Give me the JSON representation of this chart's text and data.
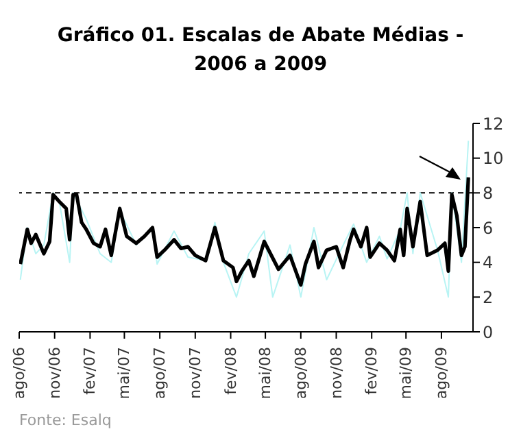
{
  "chart_data": {
    "type": "line",
    "title": "Gráfico 01. Escalas de Abate Médias - 2006 a 2009",
    "annotations": [
      "Fonte: Esalq"
    ],
    "series": [
      {
        "color": "#b8f4f4",
        "x": [
          "2006-08-04",
          "2006-08-22",
          "2006-09-13",
          "2006-10-04",
          "2006-10-28",
          "2006-11-13",
          "2006-12-10",
          "2006-12-19",
          "2007-01-22",
          "2007-02-27",
          "2007-03-28",
          "2007-04-19",
          "2007-06-01",
          "2007-07-13",
          "2007-07-25",
          "2007-09-07",
          "2007-10-13",
          "2007-11-28",
          "2007-12-22",
          "2008-01-13",
          "2008-02-16",
          "2008-03-19",
          "2008-04-28",
          "2008-05-20",
          "2008-07-04",
          "2008-08-01",
          "2008-09-04",
          "2008-10-07",
          "2008-11-19",
          "2008-12-16",
          "2009-01-19",
          "2009-02-21",
          "2009-03-13",
          "2009-04-16",
          "2009-05-04",
          "2009-05-19",
          "2009-06-07",
          "2009-07-22",
          "2009-08-19",
          "2009-08-28",
          "2009-09-22",
          "2009-10-10"
        ],
        "values": [
          3,
          6,
          4.5,
          5,
          8,
          7.5,
          4,
          8,
          6.5,
          4.5,
          4,
          7,
          5,
          6,
          3.9,
          5.8,
          4.3,
          4.1,
          6.3,
          4,
          2,
          4.5,
          5.8,
          2,
          5,
          2,
          6,
          3,
          5,
          6.2,
          4,
          5.5,
          4.2,
          5.9,
          8,
          4.5,
          8,
          4.7,
          2,
          8,
          4,
          11
        ]
      },
      {
        "color": "#000000",
        "x": [
          "2006-08-04",
          "2006-08-22",
          "2006-09-01",
          "2006-09-13",
          "2006-10-04",
          "2006-10-19",
          "2006-10-28",
          "2006-11-13",
          "2006-12-01",
          "2006-12-10",
          "2006-12-19",
          "2006-12-28",
          "2007-01-10",
          "2007-01-22",
          "2007-02-10",
          "2007-02-27",
          "2007-03-13",
          "2007-03-28",
          "2007-04-19",
          "2007-05-07",
          "2007-06-01",
          "2007-06-22",
          "2007-07-13",
          "2007-07-25",
          "2007-08-13",
          "2007-09-07",
          "2007-09-25",
          "2007-10-13",
          "2007-11-01",
          "2007-11-28",
          "2007-12-22",
          "2008-01-13",
          "2008-02-07",
          "2008-02-16",
          "2008-03-01",
          "2008-03-19",
          "2008-04-01",
          "2008-04-28",
          "2008-06-04",
          "2008-07-04",
          "2008-08-01",
          "2008-08-13",
          "2008-09-04",
          "2008-09-16",
          "2008-10-07",
          "2008-11-01",
          "2008-11-19",
          "2008-12-07",
          "2008-12-16",
          "2009-01-04",
          "2009-01-19",
          "2009-01-28",
          "2009-02-21",
          "2009-03-13",
          "2009-04-01",
          "2009-04-16",
          "2009-04-25",
          "2009-05-04",
          "2009-05-19",
          "2009-06-07",
          "2009-06-25",
          "2009-07-22",
          "2009-08-10",
          "2009-08-19",
          "2009-08-28",
          "2009-09-10",
          "2009-09-22",
          "2009-10-01",
          "2009-10-10"
        ],
        "values": [
          3.9,
          5.9,
          5.1,
          5.6,
          4.5,
          5.2,
          7.9,
          7.5,
          7.1,
          5.3,
          7.9,
          7.9,
          6.3,
          5.9,
          5.1,
          4.9,
          5.9,
          4.4,
          7.1,
          5.5,
          5.1,
          5.5,
          6.0,
          4.3,
          4.7,
          5.3,
          4.8,
          4.9,
          4.4,
          4.1,
          6.0,
          4.1,
          3.7,
          2.9,
          3.5,
          4.1,
          3.2,
          5.2,
          3.6,
          4.4,
          2.7,
          3.9,
          5.2,
          3.7,
          4.7,
          4.9,
          3.7,
          5.3,
          5.9,
          4.9,
          6.0,
          4.3,
          5.1,
          4.7,
          4.1,
          5.9,
          4.4,
          7.1,
          4.9,
          7.5,
          4.4,
          4.7,
          5.1,
          3.5,
          7.9,
          6.7,
          4.4,
          4.9,
          8.9
        ]
      }
    ],
    "xlim": [
      "2006-08-01",
      "2009-10-22"
    ],
    "xticks": [
      {
        "value": "2006-08",
        "label": "ago/06"
      },
      {
        "value": "2006-11",
        "label": "nov/06"
      },
      {
        "value": "2007-02",
        "label": "fev/07"
      },
      {
        "value": "2007-05",
        "label": "mai/07"
      },
      {
        "value": "2007-08",
        "label": "ago/07"
      },
      {
        "value": "2007-11",
        "label": "nov/07"
      },
      {
        "value": "2008-02",
        "label": "fev/08"
      },
      {
        "value": "2008-05",
        "label": "mai/08"
      },
      {
        "value": "2008-08",
        "label": "ago/08"
      },
      {
        "value": "2008-11",
        "label": "nov/08"
      },
      {
        "value": "2009-02",
        "label": "fev/09"
      },
      {
        "value": "2009-05",
        "label": "mai/09"
      },
      {
        "value": "2009-08",
        "label": "ago/09"
      }
    ],
    "ylim": [
      0,
      12
    ],
    "yticks": [
      0,
      2,
      4,
      6,
      8,
      10,
      12
    ],
    "ref_lines": [
      {
        "axis": "y",
        "value": 8,
        "color": "#000000",
        "line_style": "dashed"
      }
    ],
    "marker": "none",
    "line_style": "solid"
  }
}
